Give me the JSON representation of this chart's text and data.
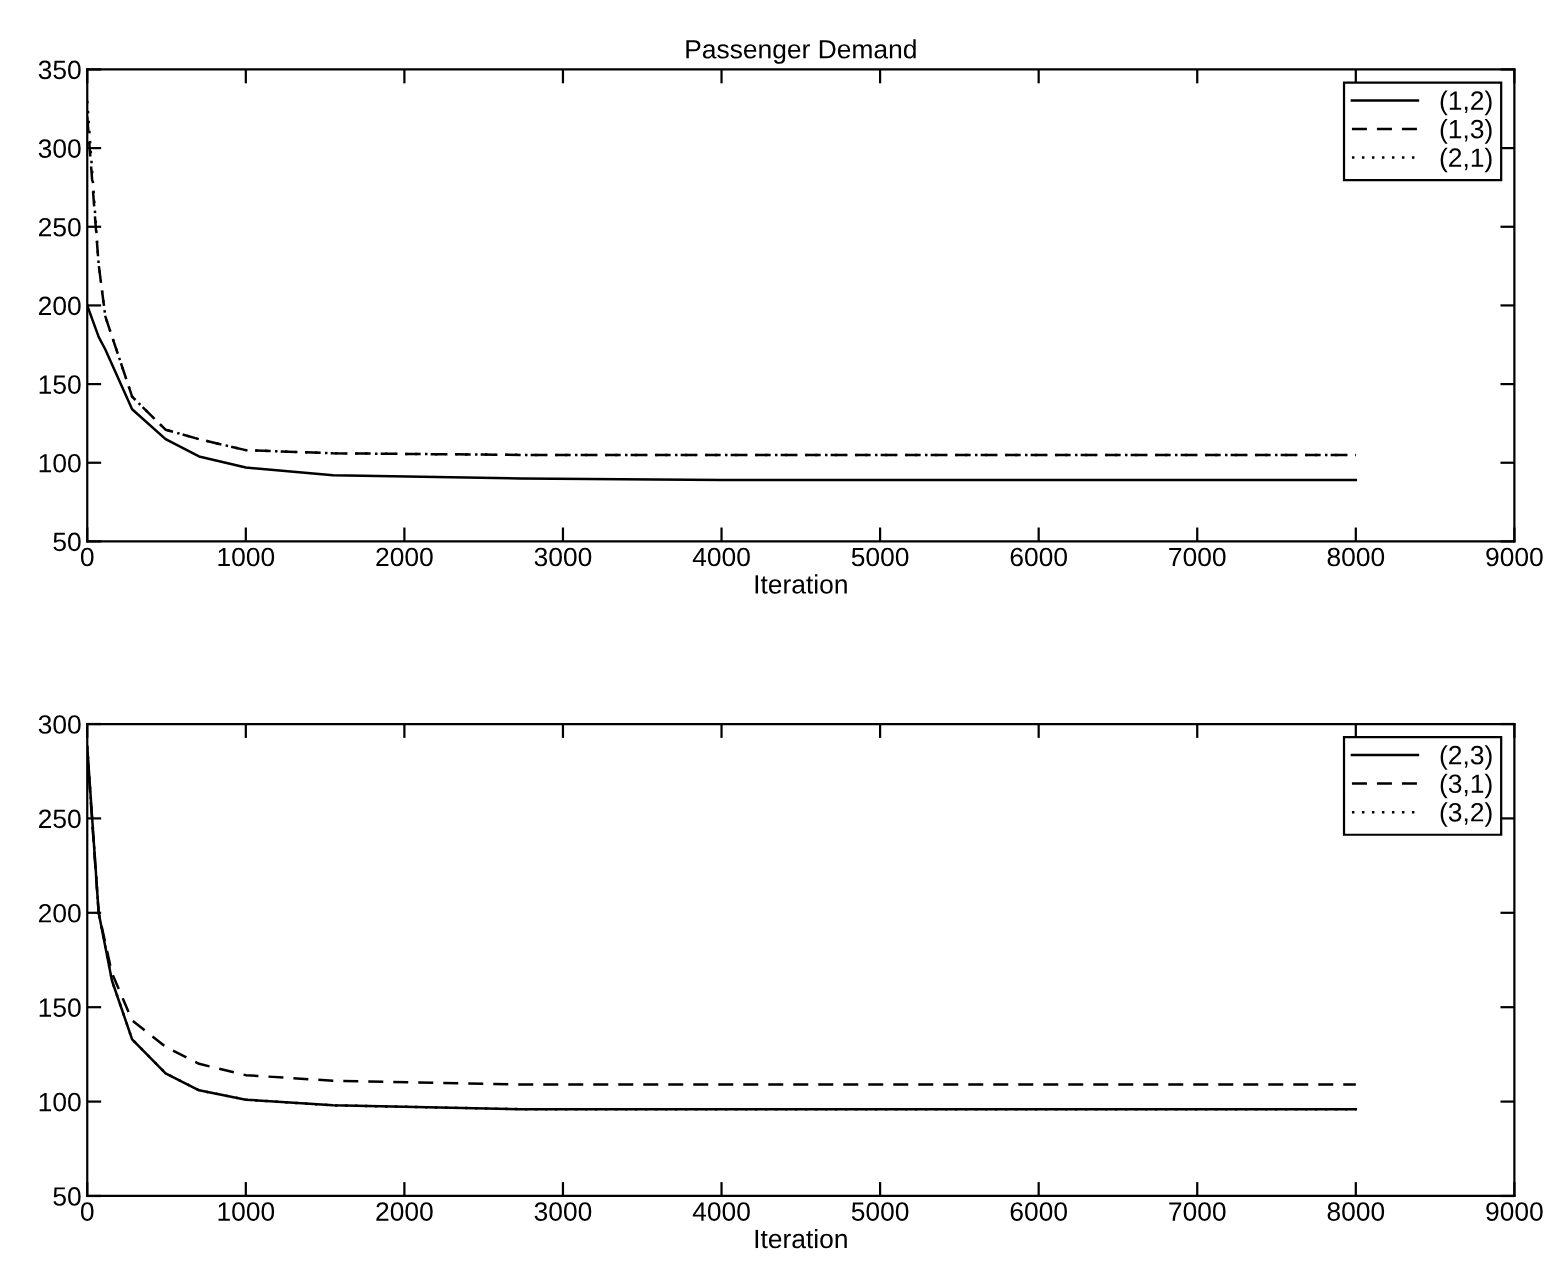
{
  "chart_data": [
    {
      "type": "line",
      "title": "Passenger Demand",
      "xlabel": "Iteration",
      "x": [
        0,
        72,
        114,
        283,
        494,
        705,
        1000,
        1550,
        2730,
        4000,
        6000,
        8000
      ],
      "series": [
        {
          "name": "(1,2)",
          "color": "#000000",
          "line_style": "solid",
          "values": [
            200,
            180,
            172,
            134,
            115,
            104,
            97,
            92,
            90,
            89,
            89,
            89
          ]
        },
        {
          "name": "(1,3)",
          "color": "#000000",
          "line_style": "dashed",
          "values": [
            320,
            226,
            193,
            142,
            121,
            115,
            108,
            106,
            105,
            105,
            105,
            105
          ]
        },
        {
          "name": "(2,1)",
          "color": "#000000",
          "line_style": "dotted",
          "values": [
            330,
            226,
            193,
            142,
            121,
            115,
            108,
            106,
            105,
            105,
            105,
            105
          ]
        }
      ],
      "xlim": [
        0,
        9000
      ],
      "xticks": [
        0,
        1000,
        2000,
        3000,
        4000,
        5000,
        6000,
        7000,
        8000,
        9000
      ],
      "ylim": [
        50,
        350
      ],
      "yticks": [
        50,
        100,
        150,
        200,
        250,
        300,
        350
      ],
      "legend": "top right",
      "grid": false
    },
    {
      "type": "line",
      "xlabel": "Iteration",
      "x": [
        0,
        72,
        156,
        283,
        494,
        705,
        1000,
        1550,
        2730,
        4000,
        6000,
        8000
      ],
      "series": [
        {
          "name": "(2,3)",
          "color": "#000000",
          "line_style": "solid",
          "values": [
            288,
            200,
            164,
            133,
            115,
            106,
            101,
            98,
            96,
            96,
            96,
            96
          ]
        },
        {
          "name": "(3,1)",
          "color": "#000000",
          "line_style": "dashed",
          "values": [
            285,
            200,
            168,
            143,
            129,
            120,
            114,
            111,
            109,
            109,
            109,
            109
          ]
        },
        {
          "name": "(3,2)",
          "color": "#000000",
          "line_style": "dotted",
          "values": [
            288,
            200,
            164,
            133,
            115,
            106,
            101,
            98,
            96,
            96,
            96,
            96
          ]
        }
      ],
      "xlim": [
        0,
        9000
      ],
      "xticks": [
        0,
        1000,
        2000,
        3000,
        4000,
        5000,
        6000,
        7000,
        8000,
        9000
      ],
      "ylim": [
        50,
        300
      ],
      "yticks": [
        50,
        100,
        150,
        200,
        250,
        300
      ],
      "legend": "top right",
      "grid": false
    }
  ]
}
